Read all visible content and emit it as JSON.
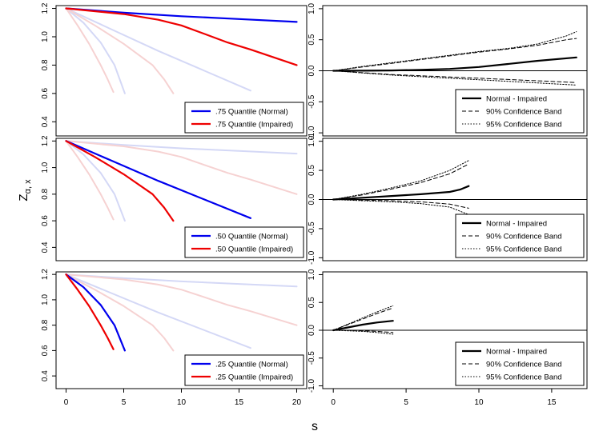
{
  "figure": {
    "shared_ylabel_main": "Z",
    "shared_ylabel_sub": "α, x",
    "shared_xlabel": "s"
  },
  "colors": {
    "normal": "#0000ee",
    "impaired": "#ee0000",
    "faint_normal": "#d4d8f6",
    "faint_impaired": "#f6d2d2",
    "difference": "#000000"
  },
  "chart_data": [
    {
      "type": "line",
      "panel": "left-top",
      "xlim": [
        0,
        20
      ],
      "ylim": [
        0.3,
        1.22
      ],
      "xticks": [
        "0",
        "5",
        "10",
        "15",
        "20"
      ],
      "yticks": [
        "0.4",
        "0.6",
        "0.8",
        "1.0",
        "1.2"
      ],
      "series": [
        {
          "name": ".75 Quantile (Normal)",
          "style": "normal",
          "x": [
            0,
            5,
            10,
            15,
            20
          ],
          "y": [
            1.2,
            1.17,
            1.145,
            1.125,
            1.105
          ]
        },
        {
          "name": ".75 Quantile (Impaired)",
          "style": "impaired",
          "x": [
            0,
            5,
            8,
            10,
            12,
            14,
            16,
            18,
            20
          ],
          "y": [
            1.2,
            1.16,
            1.12,
            1.08,
            1.02,
            0.96,
            0.91,
            0.855,
            0.8
          ]
        },
        {
          "style": "faint-normal",
          "x": [
            0,
            4,
            8,
            12,
            16
          ],
          "y": [
            1.2,
            1.05,
            0.9,
            0.76,
            0.62
          ]
        },
        {
          "style": "faint-normal",
          "x": [
            0,
            1.5,
            3,
            4.2,
            5.1
          ],
          "y": [
            1.2,
            1.1,
            0.96,
            0.8,
            0.6
          ]
        },
        {
          "style": "faint-impaired",
          "x": [
            0,
            2.5,
            5,
            7.5,
            8.5,
            9.3
          ],
          "y": [
            1.2,
            1.08,
            0.95,
            0.8,
            0.7,
            0.6
          ]
        },
        {
          "style": "faint-impaired",
          "x": [
            0,
            1,
            2,
            3,
            3.6,
            4.1
          ],
          "y": [
            1.2,
            1.08,
            0.95,
            0.8,
            0.7,
            0.61
          ]
        }
      ],
      "legend": {
        "position": "bottom-right",
        "entries": [
          ".75 Quantile (Normal)",
          ".75 Quantile (Impaired)"
        ]
      }
    },
    {
      "type": "line",
      "panel": "right-top",
      "xlim": [
        0,
        16.7
      ],
      "ylim": [
        -1.05,
        1.05
      ],
      "xticks": [
        "0",
        "5",
        "10",
        "15"
      ],
      "yticks": [
        "-1.0",
        "-0.5",
        "0.0",
        "0.5",
        "1.0"
      ],
      "series": [
        {
          "name": "Normal - Impaired",
          "style": "solid",
          "x": [
            0,
            2,
            4,
            6,
            8,
            10,
            12,
            14,
            16.7
          ],
          "y": [
            0,
            0.001,
            0.005,
            0.015,
            0.03,
            0.06,
            0.11,
            0.16,
            0.215
          ]
        },
        {
          "name": "90% Confidence Band",
          "style": "dashed",
          "x": [
            0,
            2,
            4,
            6,
            8,
            10,
            12,
            14,
            16,
            16.7
          ],
          "y": [
            0,
            0.06,
            0.12,
            0.18,
            0.24,
            0.3,
            0.35,
            0.41,
            0.5,
            0.52
          ]
        },
        {
          "name": "95% Confidence Band",
          "style": "dotted",
          "x": [
            0,
            2,
            4,
            6,
            8,
            10,
            12,
            14,
            16,
            16.7
          ],
          "y": [
            0,
            0.07,
            0.13,
            0.19,
            0.25,
            0.31,
            0.36,
            0.43,
            0.56,
            0.63
          ]
        },
        {
          "style": "dashed",
          "x": [
            0,
            4,
            8,
            12,
            16.7
          ],
          "y": [
            0,
            -0.06,
            -0.1,
            -0.14,
            -0.19
          ]
        },
        {
          "style": "dotted",
          "x": [
            0,
            4,
            8,
            12,
            16.7
          ],
          "y": [
            0,
            -0.07,
            -0.12,
            -0.17,
            -0.23
          ]
        }
      ],
      "legend": {
        "position": "bottom-right",
        "entries": [
          "Normal - Impaired",
          "90% Confidence Band",
          "95% Confidence Band"
        ]
      }
    },
    {
      "type": "line",
      "panel": "left-middle",
      "xlim": [
        0,
        20
      ],
      "ylim": [
        0.3,
        1.22
      ],
      "xticks": [
        "0",
        "5",
        "10",
        "15",
        "20"
      ],
      "yticks": [
        "0.4",
        "0.6",
        "0.8",
        "1.0",
        "1.2"
      ],
      "series": [
        {
          "name": ".50 Quantile (Normal)",
          "style": "normal",
          "x": [
            0,
            4,
            8,
            12,
            16
          ],
          "y": [
            1.2,
            1.05,
            0.9,
            0.76,
            0.62
          ]
        },
        {
          "name": ".50 Quantile (Impaired)",
          "style": "impaired",
          "x": [
            0,
            2.5,
            5,
            7.5,
            8.5,
            9.3
          ],
          "y": [
            1.2,
            1.08,
            0.95,
            0.8,
            0.7,
            0.6
          ]
        },
        {
          "style": "faint-normal",
          "x": [
            0,
            5,
            10,
            15,
            20
          ],
          "y": [
            1.2,
            1.17,
            1.145,
            1.125,
            1.105
          ]
        },
        {
          "style": "faint-impaired",
          "x": [
            0,
            5,
            8,
            10,
            12,
            14,
            16,
            18,
            20
          ],
          "y": [
            1.2,
            1.16,
            1.12,
            1.08,
            1.02,
            0.96,
            0.91,
            0.855,
            0.8
          ]
        },
        {
          "style": "faint-normal",
          "x": [
            0,
            1.5,
            3,
            4.2,
            5.1
          ],
          "y": [
            1.2,
            1.1,
            0.96,
            0.8,
            0.6
          ]
        },
        {
          "style": "faint-impaired",
          "x": [
            0,
            1,
            2,
            3,
            3.6,
            4.1
          ],
          "y": [
            1.2,
            1.08,
            0.95,
            0.8,
            0.7,
            0.61
          ]
        }
      ],
      "legend": {
        "position": "bottom-right",
        "entries": [
          ".50 Quantile (Normal)",
          ".50 Quantile (Impaired)"
        ]
      }
    },
    {
      "type": "line",
      "panel": "right-middle",
      "xlim": [
        0,
        16.7
      ],
      "ylim": [
        -1.05,
        1.05
      ],
      "xticks": [
        "0",
        "5",
        "10",
        "15"
      ],
      "yticks": [
        "-1.0",
        "-0.5",
        "0.0",
        "0.5",
        "1.0"
      ],
      "series": [
        {
          "name": "Normal - Impaired",
          "style": "solid",
          "x": [
            0,
            2,
            4,
            6,
            8,
            8.7,
            9.3
          ],
          "y": [
            0,
            0.03,
            0.06,
            0.09,
            0.13,
            0.17,
            0.23
          ]
        },
        {
          "name": "90% Confidence Band",
          "style": "dashed",
          "x": [
            0,
            2,
            4,
            6,
            8,
            9.3
          ],
          "y": [
            0,
            0.08,
            0.18,
            0.29,
            0.44,
            0.61
          ]
        },
        {
          "name": "95% Confidence Band",
          "style": "dotted",
          "x": [
            0,
            2,
            4,
            6,
            8,
            9.3
          ],
          "y": [
            0,
            0.09,
            0.2,
            0.32,
            0.5,
            0.67
          ]
        },
        {
          "style": "dashed",
          "x": [
            0,
            2,
            4,
            6,
            8,
            9.3
          ],
          "y": [
            0,
            -0.01,
            -0.02,
            -0.04,
            -0.08,
            -0.15
          ]
        },
        {
          "style": "dotted",
          "x": [
            0,
            2,
            4,
            6,
            8,
            9.3
          ],
          "y": [
            0,
            -0.02,
            -0.04,
            -0.07,
            -0.13,
            -0.26
          ]
        }
      ],
      "legend": {
        "position": "bottom-right",
        "entries": [
          "Normal - Impaired",
          "90% Confidence Band",
          "95% Confidence Band"
        ]
      }
    },
    {
      "type": "line",
      "panel": "left-bottom",
      "xlim": [
        0,
        20
      ],
      "ylim": [
        0.3,
        1.22
      ],
      "xticks": [
        "0",
        "5",
        "10",
        "15",
        "20"
      ],
      "yticks": [
        "0.4",
        "0.6",
        "0.8",
        "1.0",
        "1.2"
      ],
      "series": [
        {
          "name": ".25 Quantile (Normal)",
          "style": "normal",
          "x": [
            0,
            1.5,
            3,
            4.2,
            5.1
          ],
          "y": [
            1.2,
            1.1,
            0.96,
            0.8,
            0.6
          ]
        },
        {
          "name": ".25 Quantile (Impaired)",
          "style": "impaired",
          "x": [
            0,
            1,
            2,
            3,
            3.6,
            4.1
          ],
          "y": [
            1.2,
            1.08,
            0.95,
            0.8,
            0.7,
            0.61
          ]
        },
        {
          "style": "faint-normal",
          "x": [
            0,
            5,
            10,
            15,
            20
          ],
          "y": [
            1.2,
            1.17,
            1.145,
            1.125,
            1.105
          ]
        },
        {
          "style": "faint-impaired",
          "x": [
            0,
            5,
            8,
            10,
            12,
            14,
            16,
            18,
            20
          ],
          "y": [
            1.2,
            1.16,
            1.12,
            1.08,
            1.02,
            0.96,
            0.91,
            0.855,
            0.8
          ]
        },
        {
          "style": "faint-normal",
          "x": [
            0,
            4,
            8,
            12,
            16
          ],
          "y": [
            1.2,
            1.05,
            0.9,
            0.76,
            0.62
          ]
        },
        {
          "style": "faint-impaired",
          "x": [
            0,
            2.5,
            5,
            7.5,
            8.5,
            9.3
          ],
          "y": [
            1.2,
            1.08,
            0.95,
            0.8,
            0.7,
            0.6
          ]
        }
      ],
      "legend": {
        "position": "bottom-right",
        "entries": [
          ".25 Quantile (Normal)",
          ".25 Quantile (Impaired)"
        ]
      }
    },
    {
      "type": "line",
      "panel": "right-bottom",
      "xlim": [
        0,
        16.7
      ],
      "ylim": [
        -1.05,
        1.05
      ],
      "xticks": [
        "0",
        "5",
        "10",
        "15"
      ],
      "yticks": [
        "-1.0",
        "-0.5",
        "0.0",
        "0.5",
        "1.0"
      ],
      "series": [
        {
          "name": "Normal - Impaired",
          "style": "solid",
          "x": [
            0,
            1,
            2,
            3,
            4.1
          ],
          "y": [
            0,
            0.05,
            0.1,
            0.14,
            0.17
          ]
        },
        {
          "name": "90% Confidence Band",
          "style": "dashed",
          "x": [
            0,
            1,
            2,
            3,
            4.1
          ],
          "y": [
            0,
            0.1,
            0.2,
            0.3,
            0.4
          ]
        },
        {
          "name": "95% Confidence Band",
          "style": "dotted",
          "x": [
            0,
            1,
            2,
            3,
            4.1
          ],
          "y": [
            0,
            0.11,
            0.22,
            0.33,
            0.44
          ]
        },
        {
          "style": "dashed",
          "x": [
            0,
            1,
            2,
            3,
            4.1
          ],
          "y": [
            0,
            0,
            -0.01,
            -0.02,
            -0.04
          ]
        },
        {
          "style": "dotted",
          "x": [
            0,
            1,
            2,
            3,
            4.1
          ],
          "y": [
            0,
            -0.01,
            -0.02,
            -0.04,
            -0.07
          ]
        }
      ],
      "legend": {
        "position": "bottom-right",
        "entries": [
          "Normal - Impaired",
          "90% Confidence Band",
          "95% Confidence Band"
        ]
      }
    }
  ]
}
